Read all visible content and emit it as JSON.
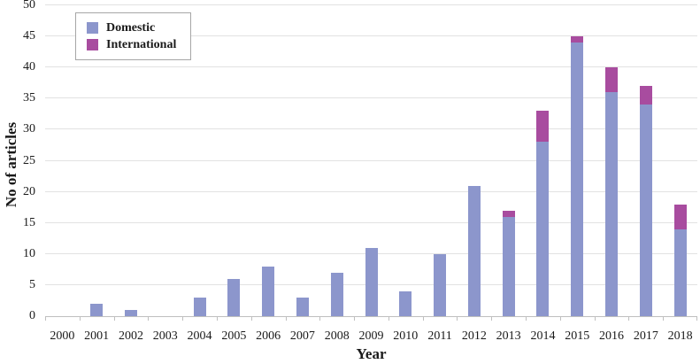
{
  "chart_data": {
    "type": "bar",
    "stacked": true,
    "title": "",
    "xlabel": "Year",
    "ylabel": "No of articles",
    "ylim": [
      0,
      50
    ],
    "ytick_step": 5,
    "yticks": [
      "0",
      "5",
      "10",
      "15",
      "20",
      "25",
      "30",
      "35",
      "40",
      "45",
      "50"
    ],
    "grid": true,
    "legend_position": "top-left",
    "categories": [
      "2000",
      "2001",
      "2002",
      "2003",
      "2004",
      "2005",
      "2006",
      "2007",
      "2008",
      "2009",
      "2010",
      "2011",
      "2012",
      "2013",
      "2014",
      "2015",
      "2016",
      "2017",
      "2018"
    ],
    "series": [
      {
        "name": "Domestic",
        "color": "#8c96cc",
        "values": [
          0,
          2,
          1,
          0,
          3,
          6,
          8,
          3,
          7,
          11,
          4,
          10,
          21,
          16,
          28,
          44,
          36,
          34,
          14
        ]
      },
      {
        "name": "International",
        "color": "#a84c9f",
        "values": [
          0,
          0,
          0,
          0,
          0,
          0,
          0,
          0,
          0,
          0,
          0,
          0,
          0,
          1,
          5,
          1,
          4,
          3,
          4
        ]
      }
    ]
  }
}
